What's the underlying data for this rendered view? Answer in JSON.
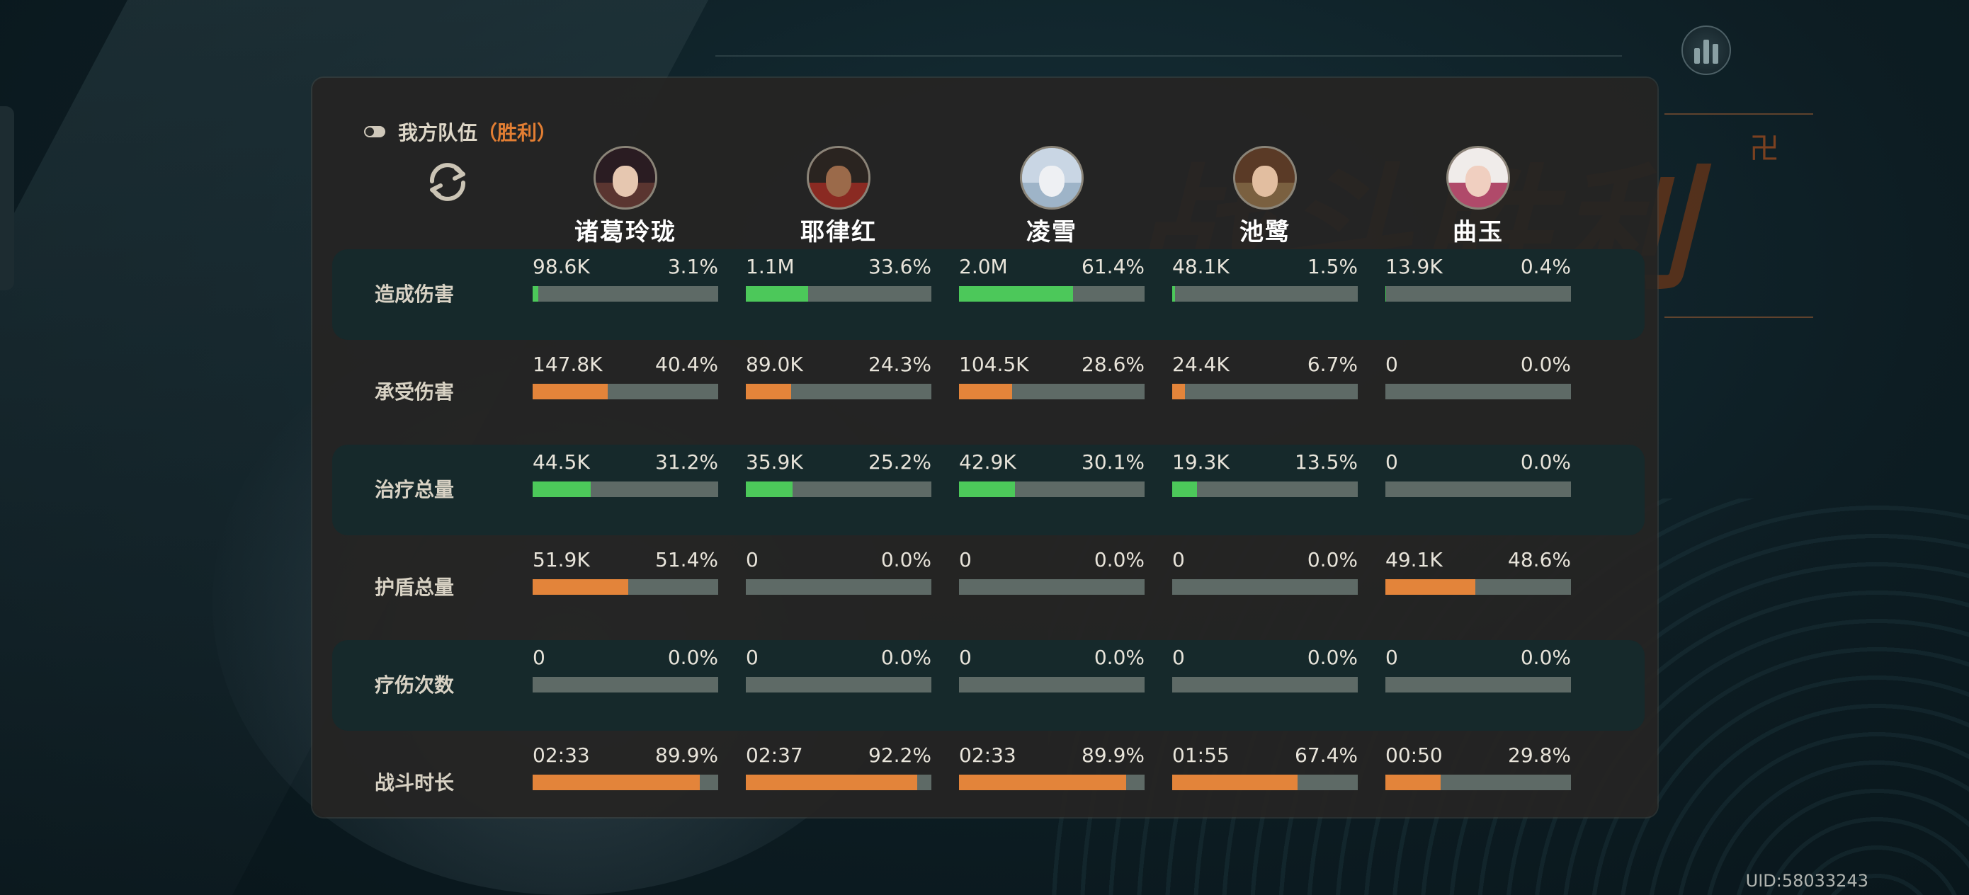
{
  "team": {
    "title": "我方队伍",
    "status": "（胜利）"
  },
  "uid": "UID:58033243",
  "colors": {
    "damage_dealt": "#4cc85a",
    "damage_taken": "#e3843a",
    "heal": "#4cc85a",
    "shield": "#e3843a",
    "heal_count": "#4cc85a",
    "duration": "#e3843a"
  },
  "heroes": [
    {
      "name": "诸葛玲珑"
    },
    {
      "name": "耶律红"
    },
    {
      "name": "凌雪"
    },
    {
      "name": "池鹭"
    },
    {
      "name": "曲玉"
    }
  ],
  "rows": [
    {
      "label": "造成伤害",
      "cells": [
        {
          "value": "98.6K",
          "percent": "3.1%",
          "fill": 0.031
        },
        {
          "value": "1.1M",
          "percent": "33.6%",
          "fill": 0.336
        },
        {
          "value": "2.0M",
          "percent": "61.4%",
          "fill": 0.614
        },
        {
          "value": "48.1K",
          "percent": "1.5%",
          "fill": 0.015
        },
        {
          "value": "13.9K",
          "percent": "0.4%",
          "fill": 0.004
        }
      ]
    },
    {
      "label": "承受伤害",
      "cells": [
        {
          "value": "147.8K",
          "percent": "40.4%",
          "fill": 0.404
        },
        {
          "value": "89.0K",
          "percent": "24.3%",
          "fill": 0.243
        },
        {
          "value": "104.5K",
          "percent": "28.6%",
          "fill": 0.286
        },
        {
          "value": "24.4K",
          "percent": "6.7%",
          "fill": 0.067
        },
        {
          "value": "0",
          "percent": "0.0%",
          "fill": 0
        }
      ]
    },
    {
      "label": "治疗总量",
      "cells": [
        {
          "value": "44.5K",
          "percent": "31.2%",
          "fill": 0.312
        },
        {
          "value": "35.9K",
          "percent": "25.2%",
          "fill": 0.252
        },
        {
          "value": "42.9K",
          "percent": "30.1%",
          "fill": 0.301
        },
        {
          "value": "19.3K",
          "percent": "13.5%",
          "fill": 0.135
        },
        {
          "value": "0",
          "percent": "0.0%",
          "fill": 0
        }
      ]
    },
    {
      "label": "护盾总量",
      "cells": [
        {
          "value": "51.9K",
          "percent": "51.4%",
          "fill": 0.514
        },
        {
          "value": "0",
          "percent": "0.0%",
          "fill": 0
        },
        {
          "value": "0",
          "percent": "0.0%",
          "fill": 0
        },
        {
          "value": "0",
          "percent": "0.0%",
          "fill": 0
        },
        {
          "value": "49.1K",
          "percent": "48.6%",
          "fill": 0.486
        }
      ]
    },
    {
      "label": "疗伤次数",
      "cells": [
        {
          "value": "0",
          "percent": "0.0%",
          "fill": 0
        },
        {
          "value": "0",
          "percent": "0.0%",
          "fill": 0
        },
        {
          "value": "0",
          "percent": "0.0%",
          "fill": 0
        },
        {
          "value": "0",
          "percent": "0.0%",
          "fill": 0
        },
        {
          "value": "0",
          "percent": "0.0%",
          "fill": 0
        }
      ]
    },
    {
      "label": "战斗时长",
      "cells": [
        {
          "value": "02:33",
          "percent": "89.9%",
          "fill": 0.899
        },
        {
          "value": "02:37",
          "percent": "92.2%",
          "fill": 0.922
        },
        {
          "value": "02:33",
          "percent": "89.9%",
          "fill": 0.899
        },
        {
          "value": "01:55",
          "percent": "67.4%",
          "fill": 0.674
        },
        {
          "value": "00:50",
          "percent": "29.8%",
          "fill": 0.298
        }
      ]
    }
  ]
}
